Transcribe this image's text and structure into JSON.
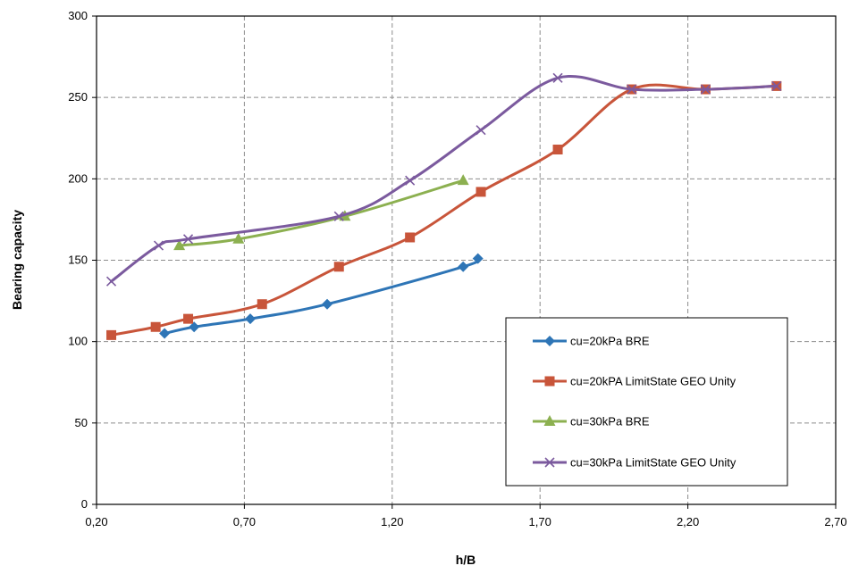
{
  "chart_data": {
    "type": "line",
    "xlabel": "h/B",
    "ylabel": "Bearing capacity",
    "xlim": [
      0.2,
      2.7
    ],
    "ylim": [
      0,
      300
    ],
    "xticks": [
      0.2,
      0.7,
      1.2,
      1.7,
      2.2,
      2.7
    ],
    "xtick_labels": [
      "0,20",
      "0,70",
      "1,20",
      "1,70",
      "2,20",
      "2,70"
    ],
    "yticks": [
      0,
      50,
      100,
      150,
      200,
      250,
      300
    ],
    "ytick_labels": [
      "0",
      "50",
      "100",
      "150",
      "200",
      "250",
      "300"
    ],
    "grid": true,
    "legend_position": "bottom-right",
    "series": [
      {
        "name": "cu=20kPa BRE",
        "color": "#2E75B6",
        "marker": "diamond",
        "points": [
          [
            0.43,
            105
          ],
          [
            0.53,
            109
          ],
          [
            0.72,
            114
          ],
          [
            0.98,
            123
          ],
          [
            1.44,
            146
          ],
          [
            1.49,
            151
          ]
        ]
      },
      {
        "name": "cu=20kPA LimitState GEO Unity",
        "color": "#C8553A",
        "marker": "square",
        "points": [
          [
            0.25,
            104
          ],
          [
            0.4,
            109
          ],
          [
            0.51,
            114
          ],
          [
            0.76,
            123
          ],
          [
            1.02,
            146
          ],
          [
            1.26,
            164
          ],
          [
            1.5,
            192
          ],
          [
            1.76,
            218
          ],
          [
            2.01,
            255
          ],
          [
            2.26,
            255
          ],
          [
            2.5,
            257
          ]
        ]
      },
      {
        "name": "cu=30kPa BRE",
        "color": "#8CB050",
        "marker": "triangle",
        "points": [
          [
            0.48,
            159
          ],
          [
            0.68,
            163
          ],
          [
            1.04,
            177
          ],
          [
            1.44,
            199
          ]
        ]
      },
      {
        "name": "cu=30kPa LimitState GEO Unity",
        "color": "#7B5A9E",
        "marker": "x",
        "points": [
          [
            0.25,
            137
          ],
          [
            0.41,
            159
          ],
          [
            0.51,
            163
          ],
          [
            1.02,
            177
          ],
          [
            1.26,
            199
          ],
          [
            1.5,
            230
          ],
          [
            1.76,
            262
          ],
          [
            2.01,
            255
          ],
          [
            2.26,
            255
          ],
          [
            2.5,
            257
          ]
        ]
      }
    ]
  }
}
